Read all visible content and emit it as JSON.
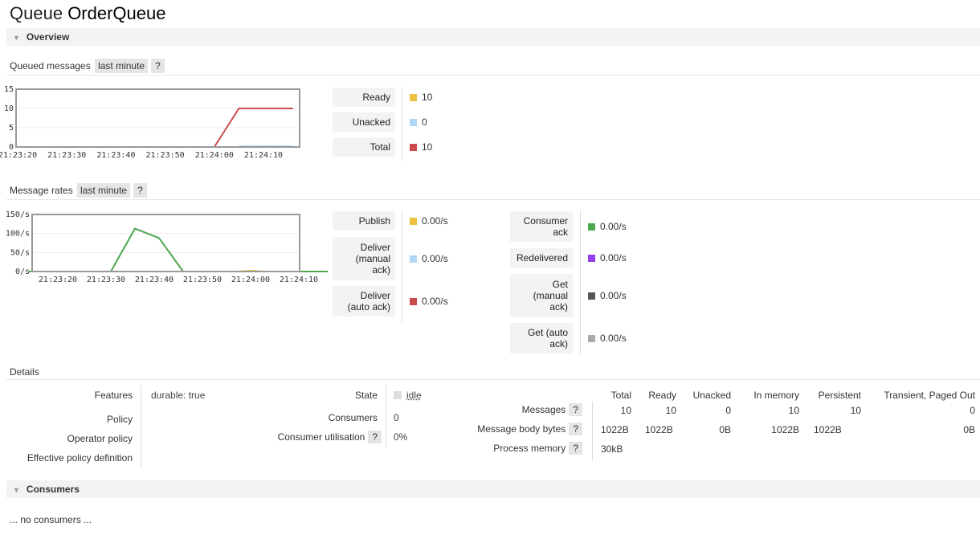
{
  "page": {
    "title_prefix": "Queue",
    "queue_name": "OrderQueue"
  },
  "overview": {
    "label": "Overview"
  },
  "queued_messages": {
    "heading": "Queued messages",
    "range": "last minute",
    "help": "?",
    "legend": [
      {
        "label": "Ready",
        "color": "#edc240",
        "value": "10"
      },
      {
        "label": "Unacked",
        "color": "#afd8f8",
        "value": "0"
      },
      {
        "label": "Total",
        "color": "#cb4b4b",
        "value": "10"
      }
    ]
  },
  "message_rates": {
    "heading": "Message rates",
    "range": "last minute",
    "help": "?",
    "legend_left": [
      {
        "label": "Publish",
        "color": "#edc240",
        "value": "0.00/s"
      },
      {
        "label": "Deliver (manual ack)",
        "color": "#afd8f8",
        "value": "0.00/s"
      },
      {
        "label": "Deliver (auto ack)",
        "color": "#cb4b4b",
        "value": "0.00/s"
      }
    ],
    "legend_right": [
      {
        "label": "Consumer ack",
        "color": "#4da74d",
        "value": "0.00/s"
      },
      {
        "label": "Redelivered",
        "color": "#9440ed",
        "value": "0.00/s"
      },
      {
        "label": "Get (manual ack)",
        "color": "#555555",
        "value": "0.00/s"
      },
      {
        "label": "Get (auto ack)",
        "color": "#aaaaaa",
        "value": "0.00/s"
      }
    ]
  },
  "chart_data": [
    {
      "type": "line",
      "x": [
        "21:23:20",
        "21:23:30",
        "21:23:40",
        "21:23:50",
        "21:24:00",
        "21:24:10"
      ],
      "ylim": [
        0,
        15
      ],
      "yticks": [
        "0",
        "5",
        "10",
        "15"
      ],
      "grid": true,
      "series": [
        {
          "name": "Total",
          "color": "#cb4b4b",
          "points": [
            [
              0,
              0
            ],
            [
              4,
              0
            ],
            [
              4.5,
              10
            ],
            [
              5.6,
              10
            ]
          ]
        },
        {
          "name": "Unacked",
          "color": "#afd8f8",
          "points": [
            [
              4.5,
              0.2
            ],
            [
              5.6,
              0.2
            ]
          ]
        }
      ]
    },
    {
      "type": "line",
      "x": [
        "21:23:20",
        "21:23:30",
        "21:23:40",
        "21:23:50",
        "21:24:00",
        "21:24:10"
      ],
      "ylim": [
        0,
        150
      ],
      "yticks": [
        "0/s",
        "50/s",
        "100/s",
        "150/s"
      ],
      "grid": true,
      "series": [
        {
          "name": "Consumer ack",
          "color": "#4da74d",
          "points": [
            [
              -0.6,
              0
            ],
            [
              1.1,
              0
            ],
            [
              1.6,
              113
            ],
            [
              2.1,
              88
            ],
            [
              2.6,
              0
            ],
            [
              5.6,
              0
            ]
          ]
        },
        {
          "name": "Publish",
          "color": "#edc240",
          "points": [
            [
              3.7,
              0
            ],
            [
              4,
              2
            ],
            [
              4.3,
              0
            ]
          ]
        }
      ]
    }
  ],
  "details": {
    "heading": "Details",
    "left": {
      "labels": [
        "Features",
        "Policy",
        "Operator policy",
        "Effective policy definition"
      ],
      "features_value": "durable: true"
    },
    "mid": {
      "state_label": "State",
      "state_value": "idle",
      "consumers_label": "Consumers",
      "consumers_value": "0",
      "util_label": "Consumer utilisation",
      "util_value": "0%"
    },
    "messages_table": {
      "columns": [
        "Total",
        "Ready",
        "Unacked",
        "In memory",
        "Persistent",
        "Transient, Paged Out"
      ],
      "rows": [
        {
          "label": "Messages",
          "values": [
            "10",
            "10",
            "0",
            "10",
            "10",
            "0"
          ]
        },
        {
          "label": "Message body bytes",
          "values": [
            "1022B",
            "1022B",
            "0B",
            "1022B",
            "1022B",
            "0B"
          ]
        },
        {
          "label": "Process memory",
          "values": [
            "30kB"
          ]
        }
      ]
    }
  },
  "consumers": {
    "label": "Consumers",
    "empty_text": "... no consumers ..."
  }
}
